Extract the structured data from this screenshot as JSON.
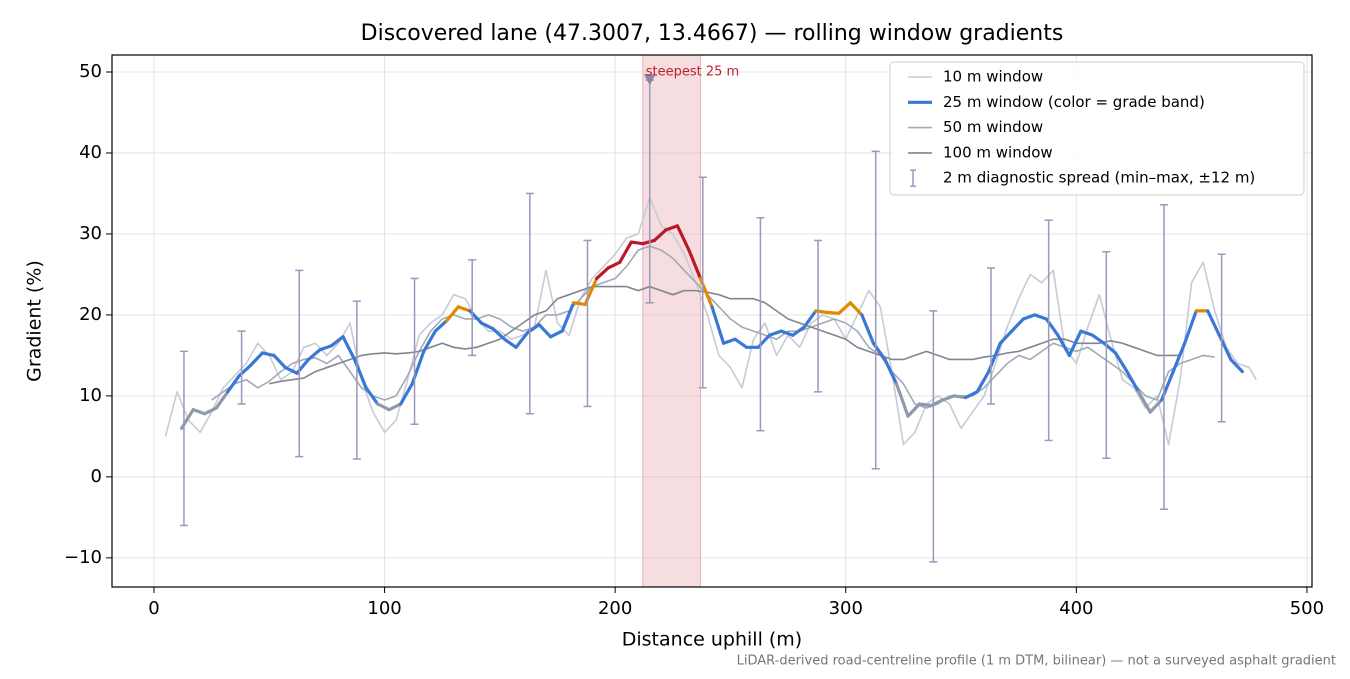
{
  "chart_data": {
    "type": "line",
    "title": "Discovered lane (47.3007, 13.4667) — rolling window gradients",
    "x_label": "Distance uphill (m)",
    "y_label": "Gradient (%)",
    "footnote": "LiDAR-derived road-centreline profile (1 m DTM, bilinear) — not a surveyed asphalt gradient",
    "xlim": [
      -18.2,
      502.2
    ],
    "ylim": [
      -13.6,
      52.1
    ],
    "xticks": [
      0,
      100,
      200,
      300,
      400,
      500
    ],
    "yticks": [
      {
        "value": -10,
        "label": "−10"
      },
      0,
      10,
      20,
      30,
      40,
      50
    ],
    "grid": true,
    "legend": "upper right",
    "series": [
      {
        "name": "10 m window",
        "color": "#c7cbd6",
        "x": [
          5,
          10,
          15,
          20,
          25,
          30,
          35,
          40,
          45,
          50,
          55,
          60,
          65,
          70,
          75,
          80,
          85,
          90,
          95,
          100,
          105,
          110,
          115,
          120,
          125,
          130,
          135,
          140,
          145,
          150,
          155,
          160,
          165,
          170,
          175,
          180,
          185,
          190,
          195,
          200,
          205,
          210,
          215,
          220,
          225,
          230,
          235,
          240,
          245,
          250,
          255,
          260,
          265,
          270,
          275,
          280,
          285,
          290,
          295,
          300,
          305,
          310,
          315,
          320,
          325,
          330,
          335,
          340,
          345,
          350,
          355,
          360,
          365,
          370,
          375,
          380,
          385,
          390,
          395,
          400,
          405,
          410,
          415,
          420,
          425,
          430,
          435,
          440,
          445,
          450,
          455,
          460,
          465,
          470,
          475,
          478
        ],
        "values": [
          5,
          10.5,
          7,
          5.5,
          8,
          11,
          12.5,
          14,
          16.5,
          15,
          12,
          13,
          16,
          16.5,
          15,
          16.5,
          19,
          12,
          8,
          5.5,
          7,
          12,
          17.5,
          19,
          20,
          22.5,
          22,
          19.5,
          18,
          18,
          17,
          17.5,
          18.5,
          25.5,
          19,
          17.5,
          22,
          24.5,
          26,
          27.5,
          29.5,
          30,
          34.5,
          31,
          30,
          27.5,
          24,
          20,
          15,
          13.5,
          11,
          17,
          19,
          15,
          17.5,
          16,
          19,
          20,
          19.5,
          17,
          20,
          23,
          21,
          13,
          4,
          5.5,
          9,
          10,
          9,
          6,
          8,
          10,
          14,
          18.5,
          22,
          25,
          24,
          25.5,
          16,
          14,
          18.5,
          22.5,
          17,
          12,
          11,
          8.5,
          10,
          4,
          12,
          24,
          26.5,
          20.5,
          16,
          14,
          13.5,
          12
        ]
      },
      {
        "name": "25 m window (color = grade band)",
        "color": "#3a78d6",
        "band_edges": [
          10,
          20,
          25
        ],
        "band_colors": [
          "#8e9aab",
          "#3a78d6",
          "#e08a00",
          "#b8192b"
        ],
        "x": [
          12,
          17,
          22,
          27,
          32,
          37,
          42,
          47,
          52,
          57,
          62,
          67,
          72,
          77,
          82,
          87,
          92,
          97,
          102,
          107,
          112,
          117,
          122,
          127,
          132,
          137,
          142,
          147,
          152,
          157,
          162,
          167,
          172,
          177,
          182,
          187,
          192,
          197,
          202,
          207,
          212,
          217,
          222,
          227,
          232,
          237,
          242,
          247,
          252,
          257,
          262,
          267,
          272,
          277,
          282,
          287,
          292,
          297,
          302,
          307,
          312,
          317,
          322,
          327,
          332,
          337,
          342,
          347,
          352,
          357,
          362,
          367,
          372,
          377,
          382,
          387,
          392,
          397,
          402,
          407,
          412,
          417,
          422,
          427,
          432,
          437,
          442,
          447,
          452,
          457,
          462,
          467,
          472
        ],
        "values": [
          6,
          8.3,
          7.8,
          8.5,
          10.5,
          12.5,
          13.8,
          15.3,
          15,
          13.5,
          12.8,
          14.5,
          15.7,
          16.2,
          17.3,
          14.5,
          11,
          9,
          8.3,
          9,
          11.5,
          15.5,
          18,
          19.3,
          21,
          20.5,
          19,
          18.3,
          17,
          16,
          17.8,
          18.8,
          17.3,
          18,
          21.5,
          21.3,
          24.5,
          25.8,
          26.5,
          29,
          28.8,
          29.2,
          30.5,
          31,
          28,
          24.5,
          21,
          16.5,
          17,
          16,
          16,
          17.5,
          18,
          17.5,
          18.5,
          20.5,
          20.3,
          20.2,
          21.5,
          20,
          16.5,
          14.5,
          11.5,
          7.5,
          9,
          8.8,
          9.5,
          10,
          9.8,
          10.5,
          13,
          16.5,
          18,
          19.5,
          20,
          19.5,
          17.5,
          15,
          18,
          17.5,
          16.5,
          15.3,
          13,
          10.5,
          8,
          9.5,
          13,
          16.5,
          20.5,
          20.5,
          17.5,
          14.5,
          13
        ]
      },
      {
        "name": "50 m window",
        "color": "#a2a9b6",
        "x": [
          25,
          30,
          35,
          40,
          45,
          50,
          55,
          60,
          65,
          70,
          75,
          80,
          85,
          90,
          95,
          100,
          105,
          110,
          115,
          120,
          125,
          130,
          135,
          140,
          145,
          150,
          155,
          160,
          165,
          170,
          175,
          180,
          185,
          190,
          195,
          200,
          205,
          210,
          215,
          220,
          225,
          230,
          235,
          240,
          245,
          250,
          255,
          260,
          265,
          270,
          275,
          280,
          285,
          290,
          295,
          300,
          305,
          310,
          315,
          320,
          325,
          330,
          335,
          340,
          345,
          350,
          355,
          360,
          365,
          370,
          375,
          380,
          385,
          390,
          395,
          400,
          405,
          410,
          415,
          420,
          425,
          430,
          435,
          440,
          445,
          450,
          455,
          460
        ],
        "values": [
          9.5,
          10.5,
          11.5,
          12,
          11,
          11.8,
          13,
          14,
          14.5,
          14.7,
          14,
          15,
          13,
          11,
          10,
          9.5,
          10,
          12.5,
          15.5,
          18,
          19.5,
          20,
          19.5,
          19.5,
          20,
          19.5,
          18.5,
          18,
          18.5,
          20,
          20,
          20.5,
          22,
          23.5,
          24,
          24.5,
          26,
          28,
          28.5,
          28,
          27,
          25.5,
          24,
          22.5,
          21,
          19.5,
          18.5,
          18,
          17.5,
          17,
          18,
          18,
          18.5,
          19,
          19.5,
          19,
          18,
          16,
          15,
          13,
          11.5,
          9,
          8.5,
          9,
          10,
          10,
          10,
          11,
          12.5,
          14,
          15,
          14.5,
          15.5,
          16.5,
          16,
          15.5,
          16,
          15,
          14,
          13,
          11.5,
          10,
          9.5,
          13,
          14,
          14.5,
          15,
          14.8
        ]
      },
      {
        "name": "100 m window",
        "color": "#7f8591",
        "x": [
          50,
          55,
          60,
          65,
          70,
          75,
          80,
          85,
          90,
          95,
          100,
          105,
          110,
          115,
          120,
          125,
          130,
          135,
          140,
          145,
          150,
          155,
          160,
          165,
          170,
          175,
          180,
          185,
          190,
          195,
          200,
          205,
          210,
          215,
          220,
          225,
          230,
          235,
          240,
          245,
          250,
          255,
          260,
          265,
          270,
          275,
          280,
          285,
          290,
          295,
          300,
          305,
          310,
          315,
          320,
          325,
          330,
          335,
          340,
          345,
          350,
          355,
          360,
          365,
          370,
          375,
          380,
          385,
          390,
          395,
          400,
          405,
          410,
          415,
          420,
          425,
          430,
          435,
          440,
          445
        ],
        "values": [
          11.5,
          11.8,
          12,
          12.2,
          13,
          13.5,
          14,
          14.5,
          15,
          15.2,
          15.3,
          15.2,
          15.3,
          15.5,
          16,
          16.5,
          16,
          15.8,
          16,
          16.5,
          17,
          18,
          19,
          20,
          20.5,
          22,
          22.5,
          23,
          23.5,
          23.5,
          23.5,
          23.5,
          23,
          23.5,
          23,
          22.5,
          23,
          23,
          22.8,
          22.5,
          22,
          22,
          22,
          21.5,
          20.5,
          19.5,
          19,
          18.5,
          18,
          17.5,
          17,
          16,
          15.5,
          15,
          14.5,
          14.5,
          15,
          15.5,
          15,
          14.5,
          14.5,
          14.5,
          14.8,
          15,
          15.3,
          15.5,
          16,
          16.5,
          17,
          17,
          16.5,
          16.5,
          16.5,
          16.8,
          16.5,
          16,
          15.5,
          15,
          15,
          15
        ]
      }
    ],
    "spread": {
      "name": "2 m diagnostic spread (min–max, ±12 m)",
      "color": "#9a98bb",
      "x": [
        13,
        38,
        63,
        88,
        113,
        138,
        163,
        188,
        215,
        238,
        263,
        288,
        313,
        338,
        363,
        388,
        413,
        438,
        463
      ],
      "min": [
        -6,
        9,
        2.5,
        2.2,
        6.5,
        15,
        7.8,
        8.7,
        21.5,
        11,
        5.7,
        10.5,
        1,
        -10.5,
        9,
        4.5,
        2.3,
        -4,
        6.8
      ],
      "max": [
        15.5,
        18,
        25.5,
        21.7,
        24.5,
        26.8,
        35,
        29.2,
        49,
        37,
        32,
        29.2,
        40.2,
        20.5,
        25.8,
        31.7,
        27.8,
        33.6,
        27.5
      ]
    },
    "annotation": {
      "text": "steepest 25 m",
      "span": [
        212,
        237
      ],
      "marker_x": 215,
      "marker_y": 49,
      "color": "#c0202e",
      "span_color": "#e8b4ba"
    }
  }
}
